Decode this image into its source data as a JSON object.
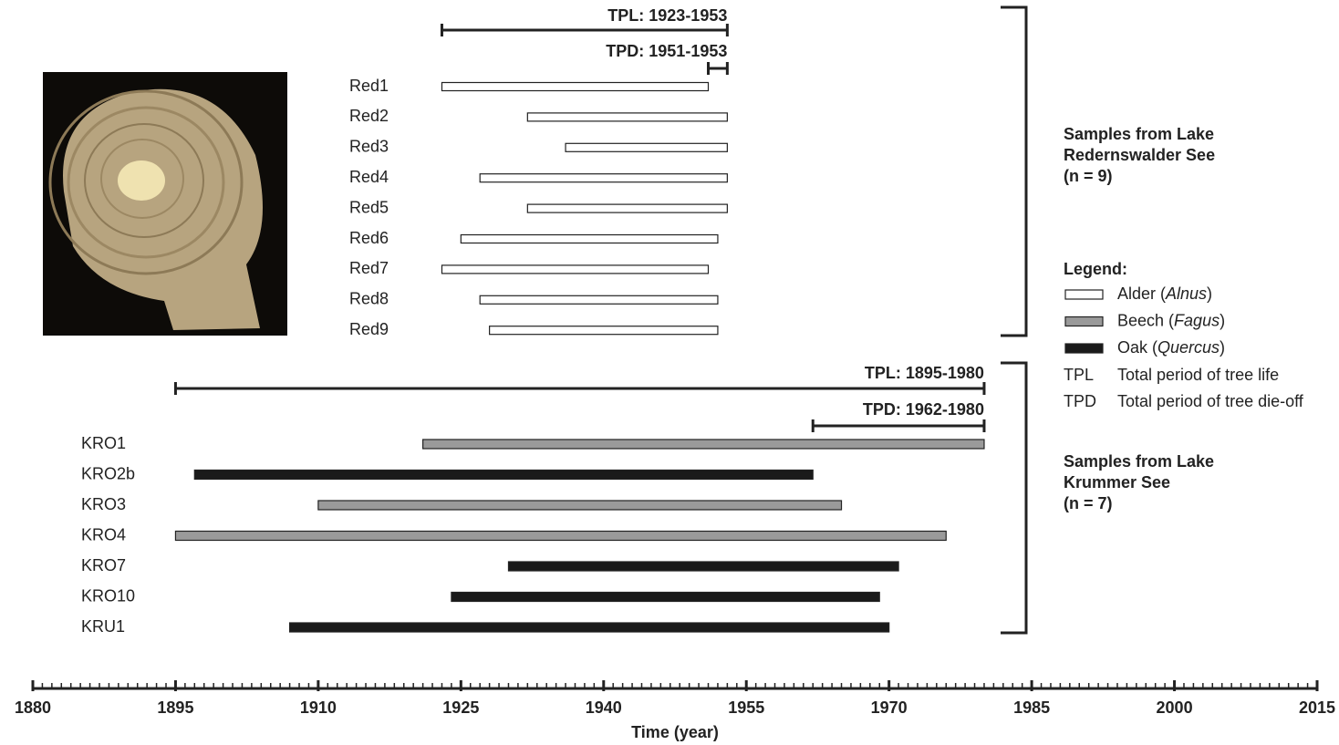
{
  "chart_data": {
    "type": "timeline",
    "x_label": "Time (year)",
    "xlim": [
      1880,
      2015
    ],
    "xticks": [
      1880,
      1895,
      1910,
      1925,
      1940,
      1955,
      1970,
      1985,
      2000,
      2015
    ],
    "minor_tick_interval": 1,
    "groups": [
      {
        "title_lines": [
          "Samples from Lake",
          "Redernswalder See",
          "(n = 9)"
        ],
        "annotations": [
          {
            "label": "TPL: 1923-1953",
            "start": 1923,
            "end": 1953
          },
          {
            "label": "TPD: 1951-1953",
            "start": 1951,
            "end": 1953
          }
        ],
        "rows": [
          {
            "label": "Red1",
            "color": "#ffffff",
            "start": 1923,
            "end": 1951
          },
          {
            "label": "Red2",
            "color": "#ffffff",
            "start": 1932,
            "end": 1953
          },
          {
            "label": "Red3",
            "color": "#ffffff",
            "start": 1936,
            "end": 1953
          },
          {
            "label": "Red4",
            "color": "#ffffff",
            "start": 1927,
            "end": 1953
          },
          {
            "label": "Red5",
            "color": "#ffffff",
            "start": 1932,
            "end": 1953
          },
          {
            "label": "Red6",
            "color": "#ffffff",
            "start": 1925,
            "end": 1952
          },
          {
            "label": "Red7",
            "color": "#ffffff",
            "start": 1923,
            "end": 1951
          },
          {
            "label": "Red8",
            "color": "#ffffff",
            "start": 1927,
            "end": 1952
          },
          {
            "label": "Red9",
            "color": "#ffffff",
            "start": 1928,
            "end": 1952
          }
        ]
      },
      {
        "title_lines": [
          "Samples from Lake",
          "Krummer See",
          "(n = 7)"
        ],
        "annotations": [
          {
            "label": "TPL: 1895-1980",
            "start": 1895,
            "end": 1980
          },
          {
            "label": "TPD: 1962-1980",
            "start": 1962,
            "end": 1980
          }
        ],
        "rows": [
          {
            "label": "KRO1",
            "color": "#9a9a9a",
            "start": 1921,
            "end": 1980
          },
          {
            "label": "KRO2b",
            "color": "#1a1a1a",
            "start": 1897,
            "end": 1962
          },
          {
            "label": "KRO3",
            "color": "#9a9a9a",
            "start": 1910,
            "end": 1965
          },
          {
            "label": "KRO4",
            "color": "#9a9a9a",
            "start": 1895,
            "end": 1976
          },
          {
            "label": "KRO7",
            "color": "#1a1a1a",
            "start": 1930,
            "end": 1971
          },
          {
            "label": "KRO10",
            "color": "#1a1a1a",
            "start": 1924,
            "end": 1969
          },
          {
            "label": "KRU1",
            "color": "#1a1a1a",
            "start": 1907,
            "end": 1970
          }
        ]
      }
    ],
    "legend": {
      "title": "Legend:",
      "items": [
        {
          "label": [
            "Alder (",
            "Alnus",
            ")"
          ],
          "color": "#ffffff"
        },
        {
          "label": [
            "Beech (",
            "Fagus",
            ")"
          ],
          "color": "#9a9a9a"
        },
        {
          "label": [
            "Oak (",
            "Quercus",
            ")"
          ],
          "color": "#1a1a1a"
        }
      ],
      "abbreviations": [
        {
          "abbr": "TPL",
          "text": "Total period of tree life"
        },
        {
          "abbr": "TPD",
          "text": "Total period of tree die-off"
        }
      ]
    }
  }
}
